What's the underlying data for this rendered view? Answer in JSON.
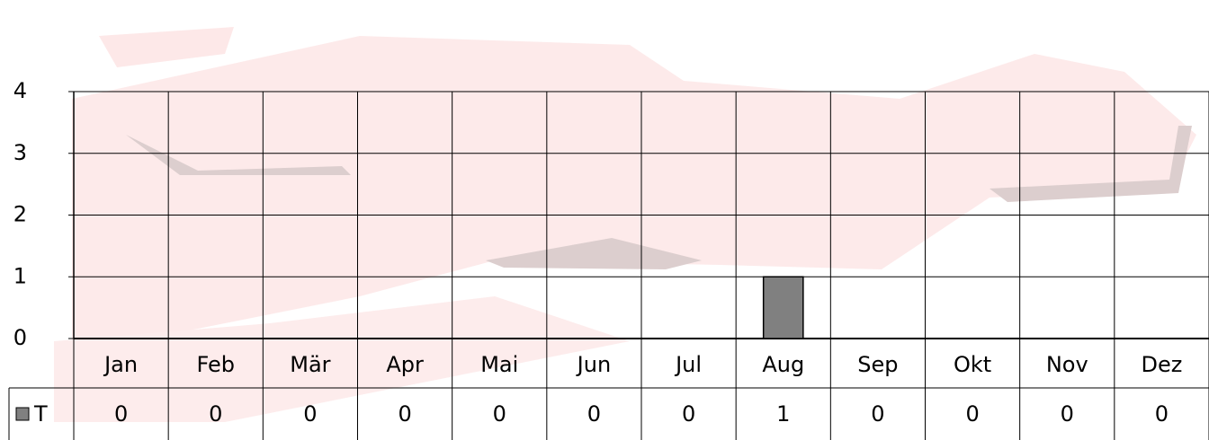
{
  "chart_data": {
    "type": "bar",
    "categories": [
      "Jan",
      "Feb",
      "Mär",
      "Apr",
      "Mai",
      "Jun",
      "Jul",
      "Aug",
      "Sep",
      "Okt",
      "Nov",
      "Dez"
    ],
    "series": [
      {
        "name": "T",
        "color": "#808080",
        "values": [
          0,
          0,
          0,
          0,
          0,
          0,
          0,
          1,
          0,
          0,
          0,
          0
        ]
      }
    ],
    "ylim": [
      0,
      4
    ],
    "yticks": [
      0,
      1,
      2,
      3,
      4
    ],
    "grid": true
  }
}
